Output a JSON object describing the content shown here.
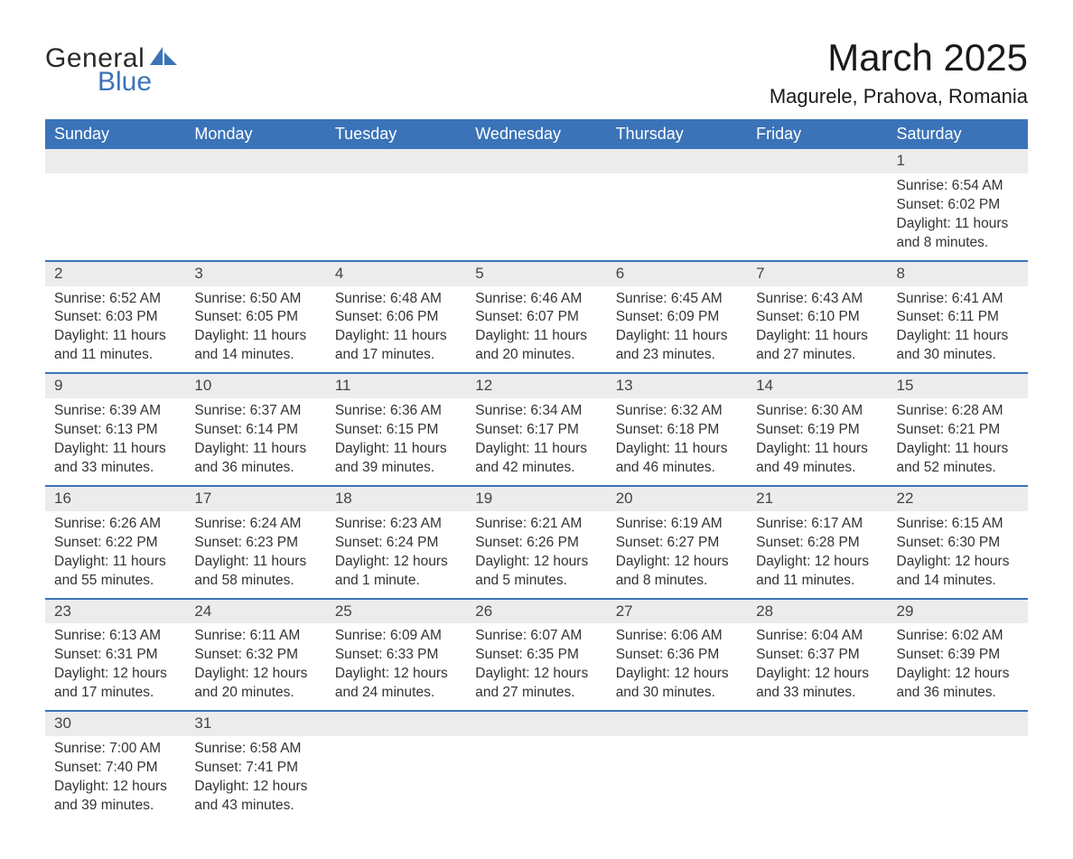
{
  "logo": {
    "part1": "General",
    "part2": "Blue",
    "shape_color": "#3b73b9"
  },
  "title": "March 2025",
  "location": "Magurele, Prahova, Romania",
  "colors": {
    "header_bg": "#3b73b9",
    "header_text": "#ffffff",
    "daynum_bg": "#ececec",
    "row_divider": "#3b73b9",
    "body_text": "#333333",
    "background": "#ffffff"
  },
  "day_headers": [
    "Sunday",
    "Monday",
    "Tuesday",
    "Wednesday",
    "Thursday",
    "Friday",
    "Saturday"
  ],
  "weeks": [
    {
      "nums": [
        "",
        "",
        "",
        "",
        "",
        "",
        "1"
      ],
      "cells": [
        null,
        null,
        null,
        null,
        null,
        null,
        {
          "sunrise": "Sunrise: 6:54 AM",
          "sunset": "Sunset: 6:02 PM",
          "day1": "Daylight: 11 hours",
          "day2": "and 8 minutes."
        }
      ]
    },
    {
      "nums": [
        "2",
        "3",
        "4",
        "5",
        "6",
        "7",
        "8"
      ],
      "cells": [
        {
          "sunrise": "Sunrise: 6:52 AM",
          "sunset": "Sunset: 6:03 PM",
          "day1": "Daylight: 11 hours",
          "day2": "and 11 minutes."
        },
        {
          "sunrise": "Sunrise: 6:50 AM",
          "sunset": "Sunset: 6:05 PM",
          "day1": "Daylight: 11 hours",
          "day2": "and 14 minutes."
        },
        {
          "sunrise": "Sunrise: 6:48 AM",
          "sunset": "Sunset: 6:06 PM",
          "day1": "Daylight: 11 hours",
          "day2": "and 17 minutes."
        },
        {
          "sunrise": "Sunrise: 6:46 AM",
          "sunset": "Sunset: 6:07 PM",
          "day1": "Daylight: 11 hours",
          "day2": "and 20 minutes."
        },
        {
          "sunrise": "Sunrise: 6:45 AM",
          "sunset": "Sunset: 6:09 PM",
          "day1": "Daylight: 11 hours",
          "day2": "and 23 minutes."
        },
        {
          "sunrise": "Sunrise: 6:43 AM",
          "sunset": "Sunset: 6:10 PM",
          "day1": "Daylight: 11 hours",
          "day2": "and 27 minutes."
        },
        {
          "sunrise": "Sunrise: 6:41 AM",
          "sunset": "Sunset: 6:11 PM",
          "day1": "Daylight: 11 hours",
          "day2": "and 30 minutes."
        }
      ]
    },
    {
      "nums": [
        "9",
        "10",
        "11",
        "12",
        "13",
        "14",
        "15"
      ],
      "cells": [
        {
          "sunrise": "Sunrise: 6:39 AM",
          "sunset": "Sunset: 6:13 PM",
          "day1": "Daylight: 11 hours",
          "day2": "and 33 minutes."
        },
        {
          "sunrise": "Sunrise: 6:37 AM",
          "sunset": "Sunset: 6:14 PM",
          "day1": "Daylight: 11 hours",
          "day2": "and 36 minutes."
        },
        {
          "sunrise": "Sunrise: 6:36 AM",
          "sunset": "Sunset: 6:15 PM",
          "day1": "Daylight: 11 hours",
          "day2": "and 39 minutes."
        },
        {
          "sunrise": "Sunrise: 6:34 AM",
          "sunset": "Sunset: 6:17 PM",
          "day1": "Daylight: 11 hours",
          "day2": "and 42 minutes."
        },
        {
          "sunrise": "Sunrise: 6:32 AM",
          "sunset": "Sunset: 6:18 PM",
          "day1": "Daylight: 11 hours",
          "day2": "and 46 minutes."
        },
        {
          "sunrise": "Sunrise: 6:30 AM",
          "sunset": "Sunset: 6:19 PM",
          "day1": "Daylight: 11 hours",
          "day2": "and 49 minutes."
        },
        {
          "sunrise": "Sunrise: 6:28 AM",
          "sunset": "Sunset: 6:21 PM",
          "day1": "Daylight: 11 hours",
          "day2": "and 52 minutes."
        }
      ]
    },
    {
      "nums": [
        "16",
        "17",
        "18",
        "19",
        "20",
        "21",
        "22"
      ],
      "cells": [
        {
          "sunrise": "Sunrise: 6:26 AM",
          "sunset": "Sunset: 6:22 PM",
          "day1": "Daylight: 11 hours",
          "day2": "and 55 minutes."
        },
        {
          "sunrise": "Sunrise: 6:24 AM",
          "sunset": "Sunset: 6:23 PM",
          "day1": "Daylight: 11 hours",
          "day2": "and 58 minutes."
        },
        {
          "sunrise": "Sunrise: 6:23 AM",
          "sunset": "Sunset: 6:24 PM",
          "day1": "Daylight: 12 hours",
          "day2": "and 1 minute."
        },
        {
          "sunrise": "Sunrise: 6:21 AM",
          "sunset": "Sunset: 6:26 PM",
          "day1": "Daylight: 12 hours",
          "day2": "and 5 minutes."
        },
        {
          "sunrise": "Sunrise: 6:19 AM",
          "sunset": "Sunset: 6:27 PM",
          "day1": "Daylight: 12 hours",
          "day2": "and 8 minutes."
        },
        {
          "sunrise": "Sunrise: 6:17 AM",
          "sunset": "Sunset: 6:28 PM",
          "day1": "Daylight: 12 hours",
          "day2": "and 11 minutes."
        },
        {
          "sunrise": "Sunrise: 6:15 AM",
          "sunset": "Sunset: 6:30 PM",
          "day1": "Daylight: 12 hours",
          "day2": "and 14 minutes."
        }
      ]
    },
    {
      "nums": [
        "23",
        "24",
        "25",
        "26",
        "27",
        "28",
        "29"
      ],
      "cells": [
        {
          "sunrise": "Sunrise: 6:13 AM",
          "sunset": "Sunset: 6:31 PM",
          "day1": "Daylight: 12 hours",
          "day2": "and 17 minutes."
        },
        {
          "sunrise": "Sunrise: 6:11 AM",
          "sunset": "Sunset: 6:32 PM",
          "day1": "Daylight: 12 hours",
          "day2": "and 20 minutes."
        },
        {
          "sunrise": "Sunrise: 6:09 AM",
          "sunset": "Sunset: 6:33 PM",
          "day1": "Daylight: 12 hours",
          "day2": "and 24 minutes."
        },
        {
          "sunrise": "Sunrise: 6:07 AM",
          "sunset": "Sunset: 6:35 PM",
          "day1": "Daylight: 12 hours",
          "day2": "and 27 minutes."
        },
        {
          "sunrise": "Sunrise: 6:06 AM",
          "sunset": "Sunset: 6:36 PM",
          "day1": "Daylight: 12 hours",
          "day2": "and 30 minutes."
        },
        {
          "sunrise": "Sunrise: 6:04 AM",
          "sunset": "Sunset: 6:37 PM",
          "day1": "Daylight: 12 hours",
          "day2": "and 33 minutes."
        },
        {
          "sunrise": "Sunrise: 6:02 AM",
          "sunset": "Sunset: 6:39 PM",
          "day1": "Daylight: 12 hours",
          "day2": "and 36 minutes."
        }
      ]
    },
    {
      "nums": [
        "30",
        "31",
        "",
        "",
        "",
        "",
        ""
      ],
      "cells": [
        {
          "sunrise": "Sunrise: 7:00 AM",
          "sunset": "Sunset: 7:40 PM",
          "day1": "Daylight: 12 hours",
          "day2": "and 39 minutes."
        },
        {
          "sunrise": "Sunrise: 6:58 AM",
          "sunset": "Sunset: 7:41 PM",
          "day1": "Daylight: 12 hours",
          "day2": "and 43 minutes."
        },
        null,
        null,
        null,
        null,
        null
      ]
    }
  ]
}
